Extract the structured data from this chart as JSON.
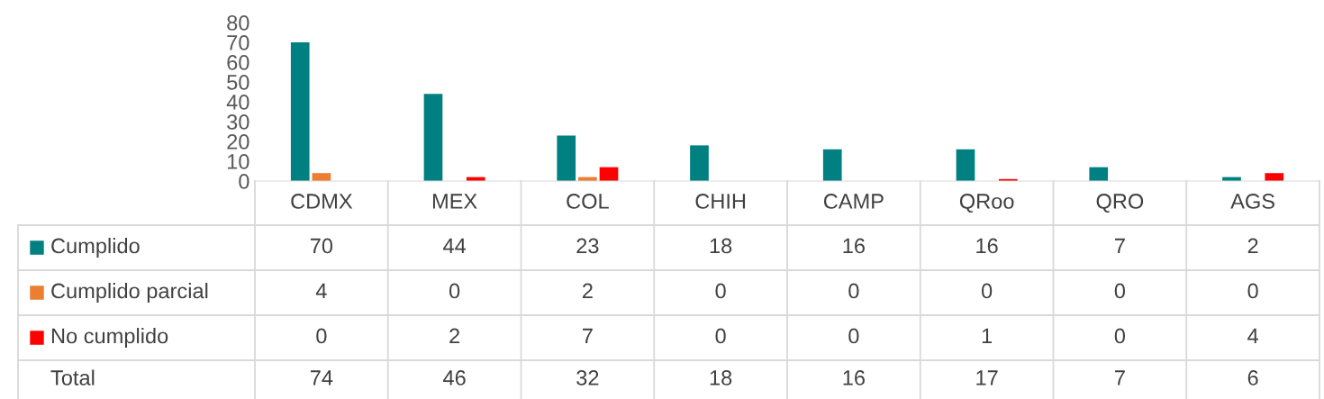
{
  "chart_data": {
    "type": "bar",
    "categories": [
      "CDMX",
      "MEX",
      "COL",
      "CHIH",
      "CAMP",
      "QRoo",
      "QRO",
      "AGS"
    ],
    "series": [
      {
        "name": "Cumplido",
        "color": "#008080",
        "values": [
          70,
          44,
          23,
          18,
          16,
          16,
          7,
          2
        ]
      },
      {
        "name": "Cumplido parcial",
        "color": "#ed7d31",
        "values": [
          4,
          0,
          2,
          0,
          0,
          0,
          0,
          0
        ]
      },
      {
        "name": "No cumplido",
        "color": "#ff0000",
        "values": [
          0,
          2,
          7,
          0,
          0,
          1,
          0,
          4
        ]
      }
    ],
    "ylim": [
      0,
      80
    ],
    "yticks": [
      0,
      10,
      20,
      30,
      40,
      50,
      60,
      70,
      80
    ],
    "grid": false,
    "legend": "bottom",
    "data_labels": true,
    "annotations": [
      "Total",
      "74",
      "46",
      "32",
      "18",
      "16",
      "17",
      "7",
      "6"
    ]
  }
}
